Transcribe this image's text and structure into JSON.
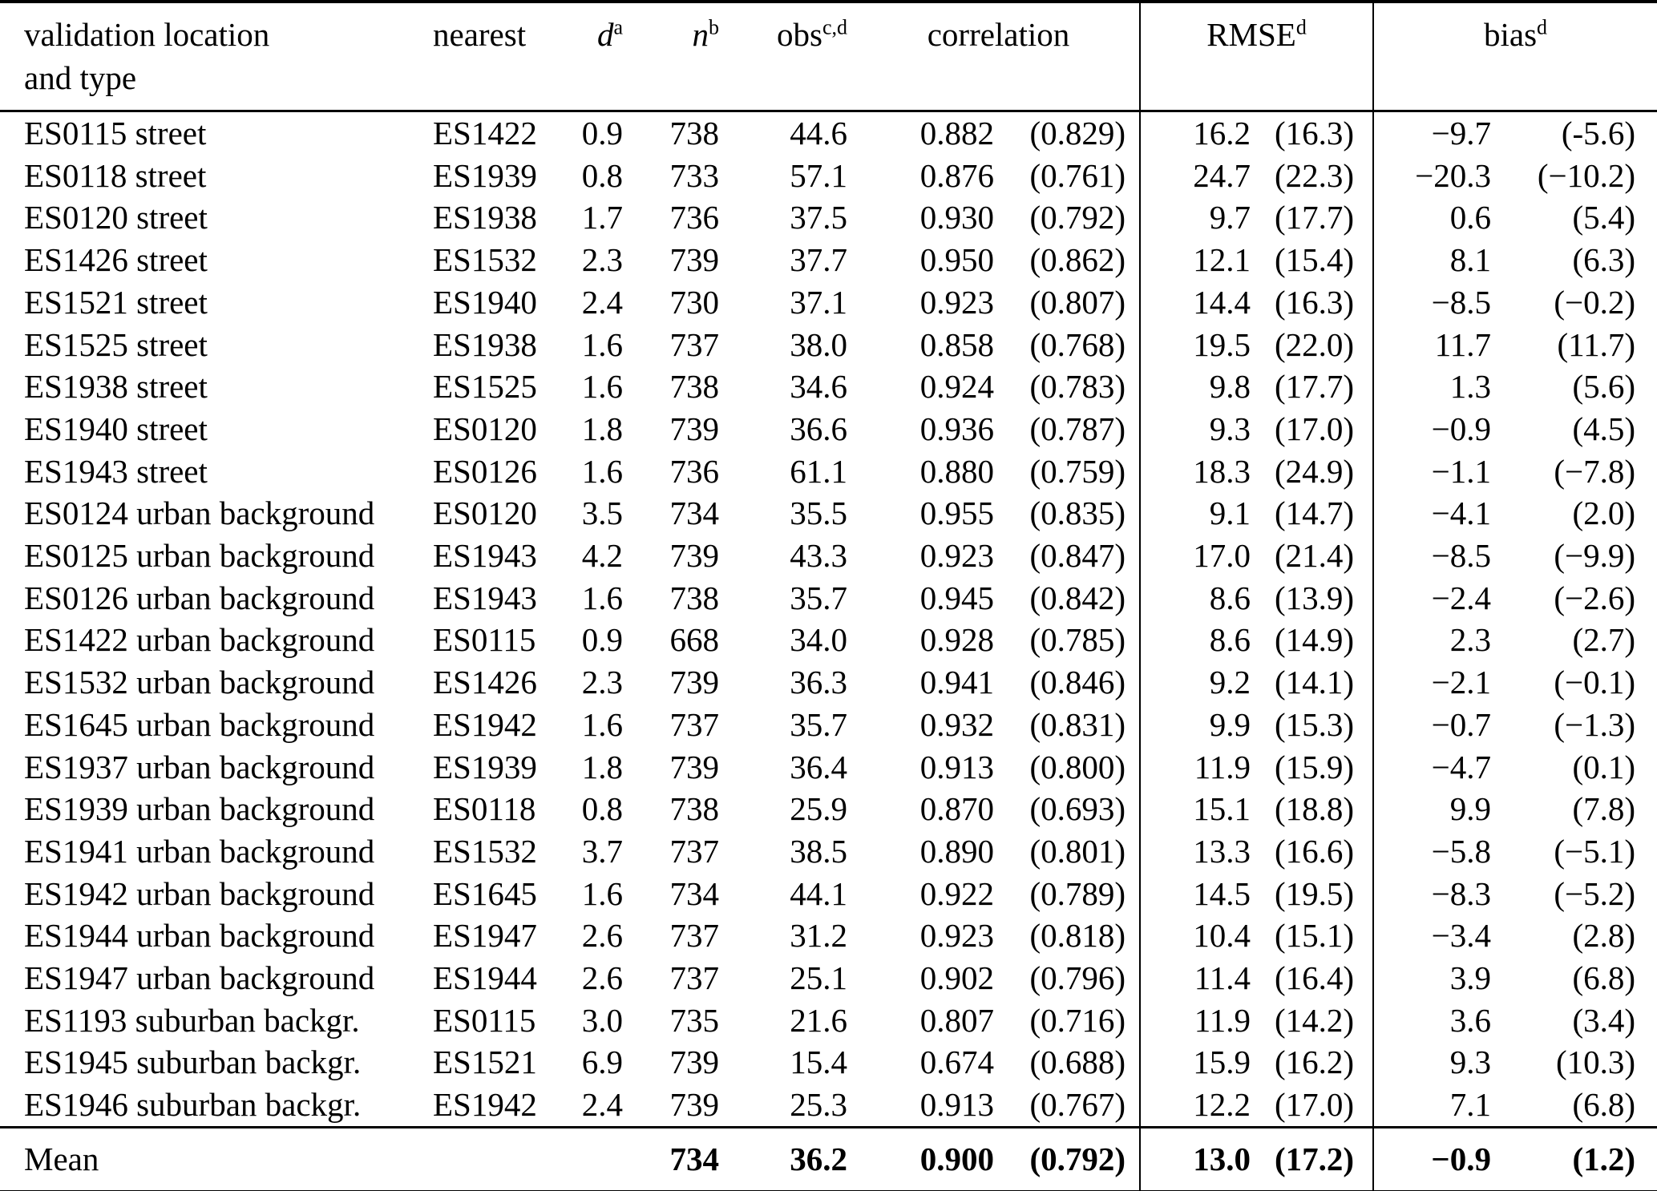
{
  "table": {
    "headers": {
      "location_line1": "validation location",
      "location_line2": "and type",
      "nearest": "nearest",
      "d": {
        "base": "d",
        "sup": "a"
      },
      "n": {
        "base": "n",
        "sup": "b"
      },
      "obs": {
        "base": "obs",
        "sup": "c,d"
      },
      "correlation": {
        "base": "correlation",
        "sup": ""
      },
      "rmse": {
        "base": "RMSE",
        "sup": "d"
      },
      "bias": {
        "base": "bias",
        "sup": "d"
      }
    },
    "rows": [
      [
        "ES0115 street",
        "ES1422",
        "0.9",
        "738",
        "44.6",
        "0.882",
        "(0.829)",
        "16.2",
        "(16.3)",
        "−9.7",
        "(-5.6)"
      ],
      [
        "ES0118 street",
        "ES1939",
        "0.8",
        "733",
        "57.1",
        "0.876",
        "(0.761)",
        "24.7",
        "(22.3)",
        "−20.3",
        "(−10.2)"
      ],
      [
        "ES0120 street",
        "ES1938",
        "1.7",
        "736",
        "37.5",
        "0.930",
        "(0.792)",
        "9.7",
        "(17.7)",
        "0.6",
        "(5.4)"
      ],
      [
        "ES1426 street",
        "ES1532",
        "2.3",
        "739",
        "37.7",
        "0.950",
        "(0.862)",
        "12.1",
        "(15.4)",
        "8.1",
        "(6.3)"
      ],
      [
        "ES1521 street",
        "ES1940",
        "2.4",
        "730",
        "37.1",
        "0.923",
        "(0.807)",
        "14.4",
        "(16.3)",
        "−8.5",
        "(−0.2)"
      ],
      [
        "ES1525 street",
        "ES1938",
        "1.6",
        "737",
        "38.0",
        "0.858",
        "(0.768)",
        "19.5",
        "(22.0)",
        "11.7",
        "(11.7)"
      ],
      [
        "ES1938 street",
        "ES1525",
        "1.6",
        "738",
        "34.6",
        "0.924",
        "(0.783)",
        "9.8",
        "(17.7)",
        "1.3",
        "(5.6)"
      ],
      [
        "ES1940 street",
        "ES0120",
        "1.8",
        "739",
        "36.6",
        "0.936",
        "(0.787)",
        "9.3",
        "(17.0)",
        "−0.9",
        "(4.5)"
      ],
      [
        "ES1943 street",
        "ES0126",
        "1.6",
        "736",
        "61.1",
        "0.880",
        "(0.759)",
        "18.3",
        "(24.9)",
        "−1.1",
        "(−7.8)"
      ],
      [
        "ES0124 urban background",
        "ES0120",
        "3.5",
        "734",
        "35.5",
        "0.955",
        "(0.835)",
        "9.1",
        "(14.7)",
        "−4.1",
        "(2.0)"
      ],
      [
        "ES0125 urban background",
        "ES1943",
        "4.2",
        "739",
        "43.3",
        "0.923",
        "(0.847)",
        "17.0",
        "(21.4)",
        "−8.5",
        "(−9.9)"
      ],
      [
        "ES0126 urban background",
        "ES1943",
        "1.6",
        "738",
        "35.7",
        "0.945",
        "(0.842)",
        "8.6",
        "(13.9)",
        "−2.4",
        "(−2.6)"
      ],
      [
        "ES1422 urban background",
        "ES0115",
        "0.9",
        "668",
        "34.0",
        "0.928",
        "(0.785)",
        "8.6",
        "(14.9)",
        "2.3",
        "(2.7)"
      ],
      [
        "ES1532 urban background",
        "ES1426",
        "2.3",
        "739",
        "36.3",
        "0.941",
        "(0.846)",
        "9.2",
        "(14.1)",
        "−2.1",
        "(−0.1)"
      ],
      [
        "ES1645 urban background",
        "ES1942",
        "1.6",
        "737",
        "35.7",
        "0.932",
        "(0.831)",
        "9.9",
        "(15.3)",
        "−0.7",
        "(−1.3)"
      ],
      [
        "ES1937 urban background",
        "ES1939",
        "1.8",
        "739",
        "36.4",
        "0.913",
        "(0.800)",
        "11.9",
        "(15.9)",
        "−4.7",
        "(0.1)"
      ],
      [
        "ES1939 urban background",
        "ES0118",
        "0.8",
        "738",
        "25.9",
        "0.870",
        "(0.693)",
        "15.1",
        "(18.8)",
        "9.9",
        "(7.8)"
      ],
      [
        "ES1941 urban background",
        "ES1532",
        "3.7",
        "737",
        "38.5",
        "0.890",
        "(0.801)",
        "13.3",
        "(16.6)",
        "−5.8",
        "(−5.1)"
      ],
      [
        "ES1942 urban background",
        "ES1645",
        "1.6",
        "734",
        "44.1",
        "0.922",
        "(0.789)",
        "14.5",
        "(19.5)",
        "−8.3",
        "(−5.2)"
      ],
      [
        "ES1944 urban background",
        "ES1947",
        "2.6",
        "737",
        "31.2",
        "0.923",
        "(0.818)",
        "10.4",
        "(15.1)",
        "−3.4",
        "(2.8)"
      ],
      [
        "ES1947 urban background",
        "ES1944",
        "2.6",
        "737",
        "25.1",
        "0.902",
        "(0.796)",
        "11.4",
        "(16.4)",
        "3.9",
        "(6.8)"
      ],
      [
        "ES1193 suburban backgr.",
        "ES0115",
        "3.0",
        "735",
        "21.6",
        "0.807",
        "(0.716)",
        "11.9",
        "(14.2)",
        "3.6",
        "(3.4)"
      ],
      [
        "ES1945 suburban backgr.",
        "ES1521",
        "6.9",
        "739",
        "15.4",
        "0.674",
        "(0.688)",
        "15.9",
        "(16.2)",
        "9.3",
        "(10.3)"
      ],
      [
        "ES1946 suburban backgr.",
        "ES1942",
        "2.4",
        "739",
        "25.3",
        "0.913",
        "(0.767)",
        "12.2",
        "(17.0)",
        "7.1",
        "(6.8)"
      ]
    ],
    "mean": [
      "Mean",
      "",
      "",
      "734",
      "36.2",
      "0.900",
      "(0.792)",
      "13.0",
      "(17.2)",
      "−0.9",
      "(1.2)"
    ]
  }
}
